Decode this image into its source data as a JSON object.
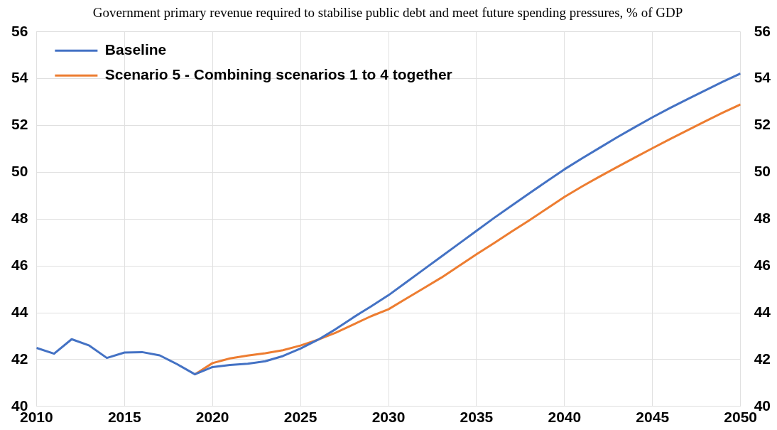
{
  "chart_data": {
    "type": "line",
    "title": "Government primary revenue required to stabilise public debt and meet future spending pressures, % of GDP",
    "x": [
      2010,
      2011,
      2012,
      2013,
      2014,
      2015,
      2016,
      2017,
      2018,
      2019,
      2020,
      2021,
      2022,
      2023,
      2024,
      2025,
      2026,
      2027,
      2028,
      2029,
      2030,
      2031,
      2032,
      2033,
      2034,
      2035,
      2036,
      2037,
      2038,
      2039,
      2040,
      2041,
      2042,
      2043,
      2044,
      2045,
      2046,
      2047,
      2048,
      2049,
      2050
    ],
    "series": [
      {
        "name": "Baseline",
        "color": "#4472c4",
        "values": [
          42.5,
          42.25,
          42.87,
          42.6,
          42.07,
          42.3,
          42.32,
          42.18,
          41.8,
          41.37,
          41.68,
          41.77,
          41.82,
          41.93,
          42.15,
          42.47,
          42.85,
          43.3,
          43.8,
          44.27,
          44.75,
          45.3,
          45.85,
          46.4,
          46.95,
          47.5,
          48.05,
          48.58,
          49.1,
          49.62,
          50.13,
          50.6,
          51.05,
          51.5,
          51.93,
          52.35,
          52.75,
          53.13,
          53.5,
          53.87,
          54.22
        ]
      },
      {
        "name": "Scenario 5 - Combining scenarios 1 to 4 together",
        "color": "#ed7d31",
        "values": [
          null,
          null,
          null,
          null,
          null,
          null,
          null,
          null,
          null,
          41.37,
          41.85,
          42.05,
          42.17,
          42.27,
          42.4,
          42.6,
          42.85,
          43.15,
          43.5,
          43.85,
          44.15,
          44.6,
          45.05,
          45.5,
          46.0,
          46.5,
          46.98,
          47.47,
          47.95,
          48.45,
          48.95,
          49.4,
          49.82,
          50.23,
          50.63,
          51.03,
          51.42,
          51.8,
          52.18,
          52.55,
          52.9
        ]
      }
    ],
    "xlim": [
      2010,
      2050
    ],
    "xticks": [
      2010,
      2015,
      2020,
      2025,
      2030,
      2035,
      2040,
      2045,
      2050
    ],
    "ylim": [
      40,
      56
    ],
    "yticks": [
      40,
      42,
      44,
      46,
      48,
      50,
      52,
      54,
      56
    ],
    "y2lim": [
      40,
      56
    ],
    "y2ticks": [
      40,
      42,
      44,
      46,
      48,
      50,
      52,
      54,
      56
    ],
    "grid": true,
    "legend": "top left",
    "marker": "none",
    "line_style": "solid"
  }
}
